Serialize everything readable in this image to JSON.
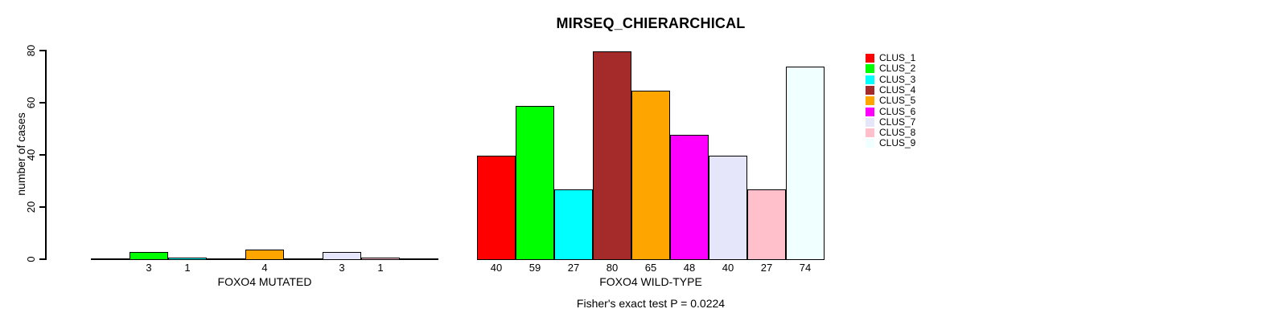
{
  "chart_data": {
    "type": "bar",
    "title": "MIRSEQ_CHIERARCHICAL",
    "ylabel": "number of cases",
    "xlabel": "",
    "ylim": [
      0,
      80
    ],
    "yticks": [
      0,
      20,
      40,
      60,
      80
    ],
    "grid": false,
    "legend_position": "right",
    "categories": [
      "FOXO4 MUTATED",
      "FOXO4 WILD-TYPE"
    ],
    "series": [
      {
        "name": "CLUS_1",
        "color": "#FF0000",
        "values": [
          0,
          40
        ]
      },
      {
        "name": "CLUS_2",
        "color": "#00FF00",
        "values": [
          3,
          59
        ]
      },
      {
        "name": "CLUS_3",
        "color": "#00FFFF",
        "values": [
          1,
          27
        ]
      },
      {
        "name": "CLUS_4",
        "color": "#A52A2A",
        "values": [
          0,
          80
        ]
      },
      {
        "name": "CLUS_5",
        "color": "#FFA500",
        "values": [
          4,
          65
        ]
      },
      {
        "name": "CLUS_6",
        "color": "#FF00FF",
        "values": [
          0,
          48
        ]
      },
      {
        "name": "CLUS_7",
        "color": "#E6E6FA",
        "values": [
          3,
          40
        ]
      },
      {
        "name": "CLUS_8",
        "color": "#FFC0CB",
        "values": [
          1,
          27
        ]
      },
      {
        "name": "CLUS_9",
        "color": "#F0FFFF",
        "values": [
          0,
          74
        ]
      }
    ],
    "bar_labels": {
      "FOXO4 MUTATED": [
        "",
        "3",
        "1",
        "",
        "4",
        "",
        "3",
        "1",
        ""
      ],
      "FOXO4 WILD-TYPE": [
        "40",
        "59",
        "27",
        "80",
        "65",
        "48",
        "40",
        "27",
        "74"
      ]
    },
    "footnote": "Fisher's exact test P = 0.0224",
    "axis_color": "#000000",
    "bar_border_color": "#000000"
  }
}
